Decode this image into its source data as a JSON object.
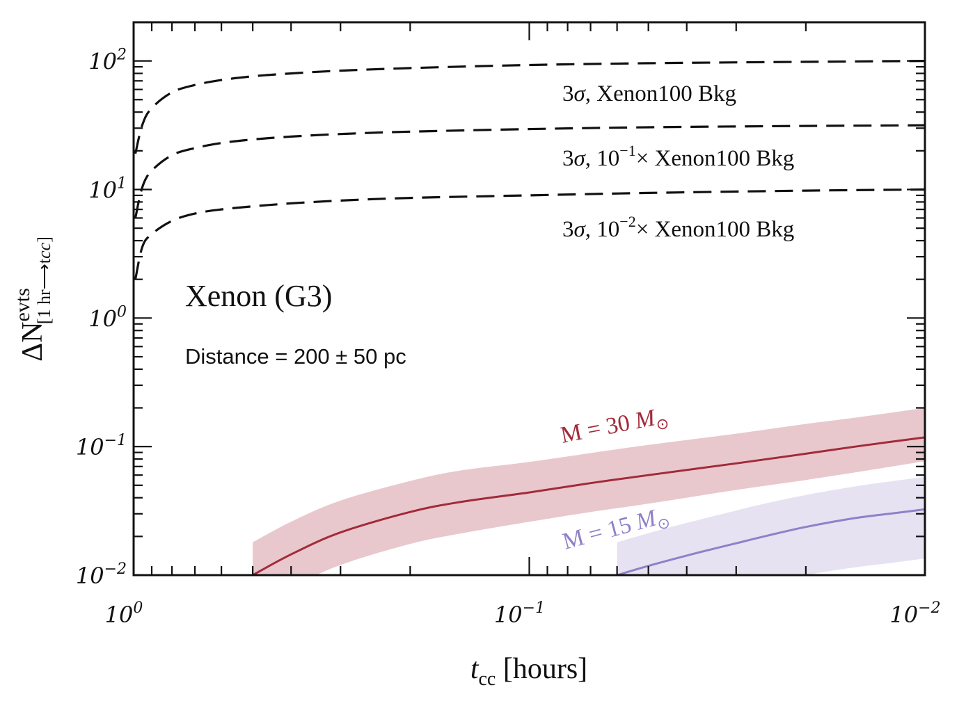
{
  "chart_data": {
    "type": "line",
    "x_scale": "log",
    "y_scale": "log",
    "x_reversed": true,
    "xlim": [
      1,
      0.01
    ],
    "ylim": [
      0.01,
      200
    ],
    "xlabel": {
      "main": "t",
      "sub": "cc",
      "units": "[hours]"
    },
    "ylabel": {
      "main": "ΔN",
      "sup": "evts",
      "sub": "[1 hr⟶t",
      "sub_italic": "cc",
      "sub_end": "]"
    },
    "x_ticks": [
      {
        "value": 1,
        "base": "10",
        "exp": "0"
      },
      {
        "value": 0.1,
        "base": "10",
        "exp": "−1"
      },
      {
        "value": 0.01,
        "base": "10",
        "exp": "−2"
      }
    ],
    "y_ticks": [
      {
        "value": 0.01,
        "base": "10",
        "exp": "−2"
      },
      {
        "value": 0.1,
        "base": "10",
        "exp": "−1"
      },
      {
        "value": 1,
        "base": "10",
        "exp": "0"
      },
      {
        "value": 10,
        "base": "10",
        "exp": "1"
      },
      {
        "value": 100,
        "base": "10",
        "exp": "2"
      }
    ],
    "grid": false,
    "annotations": {
      "detector": "Xenon (G3)",
      "distance": "Distance = 200 ± 50 pc"
    },
    "threshold_series": [
      {
        "label_prefix": "3",
        "sigma": "σ",
        "label_mid": ", ",
        "label_power_base": "",
        "label_power_exp": "",
        "label_suffix": "Xenon100 Bkg",
        "x": [
          0.99,
          0.95,
          0.9,
          0.8,
          0.7,
          0.6,
          0.5,
          0.4,
          0.3,
          0.2,
          0.1,
          0.05,
          0.02,
          0.01
        ],
        "y": [
          19,
          32,
          43,
          57,
          65,
          71,
          76,
          80,
          84,
          88,
          93,
          96,
          98.5,
          100
        ]
      },
      {
        "label_prefix": "3",
        "sigma": "σ",
        "label_mid": ", ",
        "label_power_base": "10",
        "label_power_exp": "−1",
        "label_suffix": "× Xenon100 Bkg",
        "x": [
          0.99,
          0.95,
          0.9,
          0.8,
          0.7,
          0.6,
          0.5,
          0.4,
          0.3,
          0.2,
          0.1,
          0.05,
          0.02,
          0.01
        ],
        "y": [
          6,
          10.5,
          14,
          18.5,
          21,
          23,
          24.5,
          25.8,
          27,
          28.2,
          29.5,
          30.5,
          31.2,
          31.6
        ]
      },
      {
        "label_prefix": "3",
        "sigma": "σ",
        "label_mid": ", ",
        "label_power_base": "10",
        "label_power_exp": "−2",
        "label_suffix": "× Xenon100 Bkg",
        "x": [
          0.99,
          0.95,
          0.9,
          0.8,
          0.7,
          0.6,
          0.5,
          0.4,
          0.3,
          0.2,
          0.1,
          0.05,
          0.02,
          0.01
        ],
        "y": [
          2.0,
          3.6,
          4.5,
          5.7,
          6.5,
          7.0,
          7.4,
          7.8,
          8.2,
          8.6,
          9.0,
          9.4,
          9.8,
          10.0
        ]
      }
    ],
    "mass_series": [
      {
        "label_prefix": "M = 30 ",
        "label_mass": "M",
        "label_sym": "⊙",
        "color": "#a32a3a",
        "band_color": "#e8c8cd",
        "x": [
          0.5,
          0.4,
          0.3,
          0.2,
          0.15,
          0.1,
          0.07,
          0.05,
          0.03,
          0.02,
          0.015,
          0.01
        ],
        "y": [
          0.01,
          0.0145,
          0.0215,
          0.031,
          0.037,
          0.044,
          0.052,
          0.06,
          0.074,
          0.088,
          0.1,
          0.118
        ],
        "band_lower": [
          0.0055,
          0.008,
          0.012,
          0.0175,
          0.021,
          0.026,
          0.031,
          0.036,
          0.046,
          0.055,
          0.063,
          0.077
        ],
        "band_upper": [
          0.018,
          0.026,
          0.038,
          0.054,
          0.065,
          0.076,
          0.089,
          0.103,
          0.126,
          0.15,
          0.168,
          0.2
        ]
      },
      {
        "label_prefix": "M = 15 ",
        "label_mass": "M",
        "label_sym": "⊙",
        "color": "#9080c8",
        "band_color": "#e6e2f2",
        "x": [
          0.06,
          0.05,
          0.04,
          0.03,
          0.025,
          0.02,
          0.015,
          0.012,
          0.01
        ],
        "y": [
          0.01,
          0.0118,
          0.0142,
          0.0177,
          0.0203,
          0.0237,
          0.0278,
          0.0303,
          0.0325
        ],
        "band_lower": [
          0.0042,
          0.005,
          0.006,
          0.0075,
          0.0085,
          0.01,
          0.0115,
          0.0125,
          0.0135
        ],
        "band_upper": [
          0.018,
          0.0212,
          0.0255,
          0.0318,
          0.0364,
          0.042,
          0.049,
          0.054,
          0.058
        ]
      }
    ]
  }
}
